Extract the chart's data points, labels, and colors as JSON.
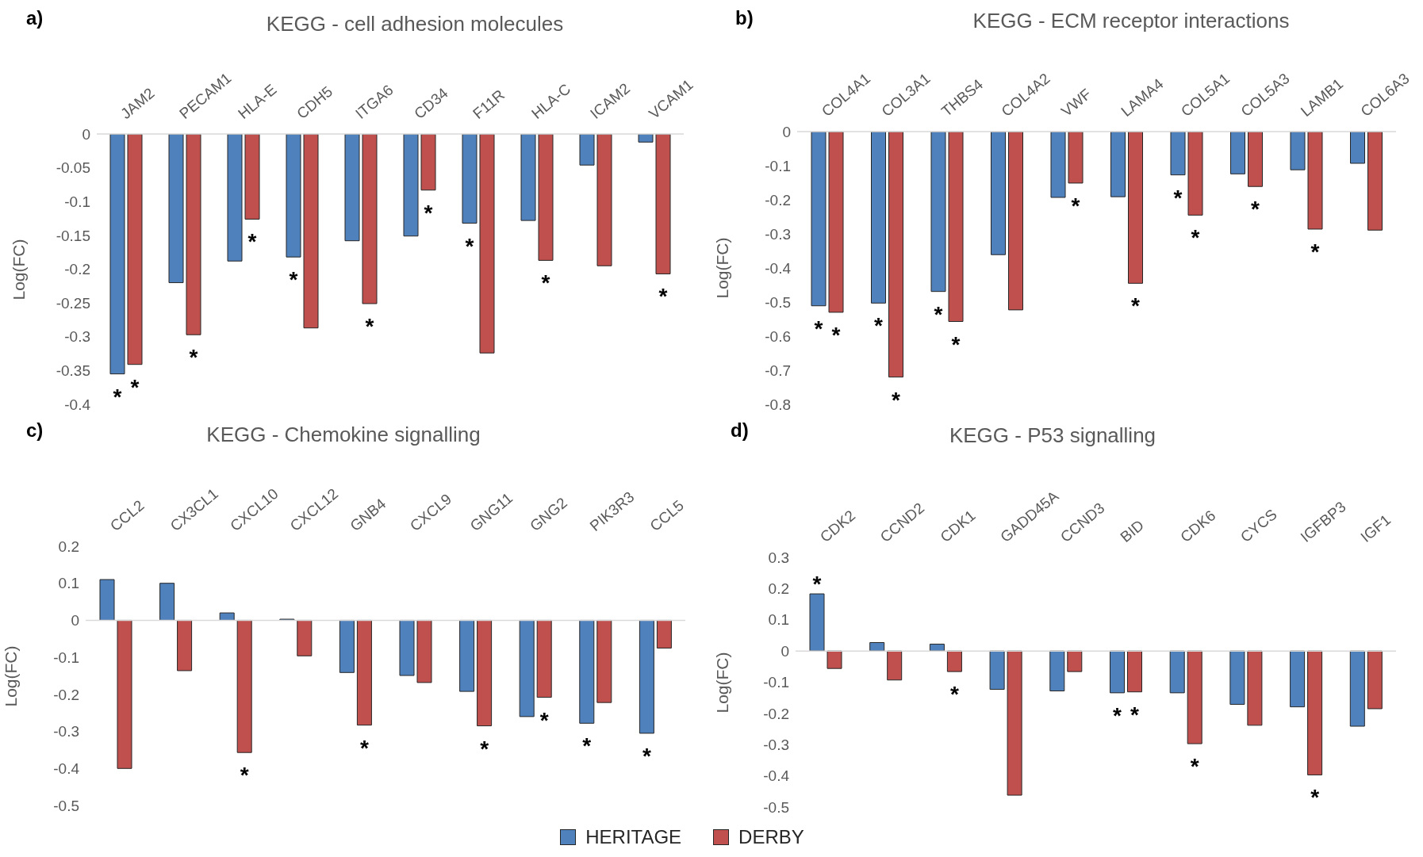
{
  "chart_data": [
    {
      "type": "bar",
      "title": "KEGG - cell adhesion molecules",
      "annotations": [
        "a)"
      ],
      "ylabel": "Log(FC)",
      "categories": [
        "JAM2",
        "PECAM1",
        "HLA-E",
        "CDH5",
        "ITGA6",
        "CD34",
        "F11R",
        "HLA-C",
        "ICAM2",
        "VCAM1"
      ],
      "ylim": [
        -0.4,
        0
      ],
      "yticks": [
        0,
        -0.05,
        -0.1,
        -0.15,
        -0.2,
        -0.25,
        -0.3,
        -0.35,
        -0.4
      ],
      "grid": false,
      "legend": false,
      "series": [
        {
          "color": "#4f81bd",
          "values": [
            -0.355,
            -0.22,
            -0.188,
            -0.182,
            -0.158,
            -0.151,
            -0.132,
            -0.128,
            -0.046,
            -0.012
          ],
          "value_labels": [
            "*",
            null,
            null,
            "*",
            null,
            null,
            "*",
            null,
            null,
            null
          ]
        },
        {
          "color": "#c0504d",
          "values": [
            -0.341,
            -0.297,
            -0.126,
            -0.287,
            -0.251,
            -0.083,
            -0.324,
            -0.187,
            -0.195,
            -0.207
          ],
          "value_labels": [
            "*",
            "*",
            "*",
            null,
            "*",
            "*",
            null,
            "*",
            null,
            "*"
          ]
        }
      ]
    },
    {
      "type": "bar",
      "title": "KEGG - ECM receptor interactions",
      "annotations": [
        "b)"
      ],
      "ylabel": "Log(FC)",
      "categories": [
        "COL4A1",
        "COL3A1",
        "THBS4",
        "COL4A2",
        "VWF",
        "LAMA4",
        "COL5A1",
        "COL5A3",
        "LAMB1",
        "COL6A3"
      ],
      "ylim": [
        -0.8,
        0
      ],
      "yticks": [
        0,
        -0.1,
        -0.2,
        -0.3,
        -0.4,
        -0.5,
        -0.6,
        -0.7,
        -0.8
      ],
      "grid": false,
      "legend": false,
      "series": [
        {
          "color": "#4f81bd",
          "values": [
            -0.511,
            -0.503,
            -0.469,
            -0.361,
            -0.193,
            -0.191,
            -0.127,
            -0.124,
            -0.112,
            -0.093
          ],
          "value_labels": [
            "*",
            "*",
            "*",
            null,
            null,
            null,
            "*",
            null,
            null,
            null
          ]
        },
        {
          "color": "#c0504d",
          "values": [
            -0.53,
            -0.72,
            -0.557,
            -0.523,
            -0.151,
            -0.445,
            -0.245,
            -0.161,
            -0.286,
            -0.289
          ],
          "value_labels": [
            "*",
            "*",
            "*",
            null,
            "*",
            "*",
            "*",
            "*",
            "*",
            null
          ]
        }
      ]
    },
    {
      "type": "bar",
      "title": "KEGG - Chemokine signalling",
      "annotations": [
        "c)"
      ],
      "ylabel": "Log(FC)",
      "categories": [
        "CCL2",
        "CX3CL1",
        "CXCL10",
        "CXCL12",
        "GNB4",
        "CXCL9",
        "GNG11",
        "GNG2",
        "PIK3R3",
        "CCL5"
      ],
      "ylim": [
        -0.5,
        0.2
      ],
      "yticks": [
        0.2,
        0.1,
        0,
        -0.1,
        -0.2,
        -0.3,
        -0.4,
        -0.5
      ],
      "grid": false,
      "ref_lines": [
        {
          "axis": "y",
          "value": 0,
          "color": "#d9d9d9"
        }
      ],
      "legend": "bottom",
      "series": [
        {
          "name": "HERITAGE",
          "color": "#4f81bd",
          "values": [
            0.11,
            0.1,
            0.02,
            0.003,
            -0.141,
            -0.149,
            -0.192,
            -0.26,
            -0.278,
            -0.305
          ],
          "value_labels": [
            null,
            null,
            null,
            null,
            null,
            null,
            null,
            null,
            "*",
            "*"
          ]
        },
        {
          "name": "DERBY",
          "color": "#c0504d",
          "values": [
            -0.4,
            -0.136,
            -0.357,
            -0.096,
            -0.283,
            -0.168,
            -0.285,
            -0.208,
            -0.222,
            -0.075
          ],
          "value_labels": [
            null,
            null,
            "*",
            null,
            "*",
            null,
            "*",
            "*",
            null,
            null
          ]
        }
      ]
    },
    {
      "type": "bar",
      "title": "KEGG - P53 signalling",
      "annotations": [
        "d)"
      ],
      "ylabel": "Log(FC)",
      "categories": [
        "CDK2",
        "CCND2",
        "CDK1",
        "GADD45A",
        "CCND3",
        "BID",
        "CDK6",
        "CYCS",
        "IGFBP3",
        "IGF1"
      ],
      "ylim": [
        -0.5,
        0.3
      ],
      "yticks": [
        0.3,
        0.2,
        0.1,
        0,
        -0.1,
        -0.2,
        -0.3,
        -0.4,
        -0.5
      ],
      "grid": false,
      "ref_lines": [
        {
          "axis": "y",
          "value": 0,
          "color": "#d9d9d9"
        }
      ],
      "legend": false,
      "series": [
        {
          "color": "#4f81bd",
          "values": [
            0.183,
            0.027,
            0.022,
            -0.123,
            -0.128,
            -0.134,
            -0.134,
            -0.171,
            -0.179,
            -0.241
          ],
          "value_labels": [
            "*",
            null,
            null,
            null,
            null,
            "*",
            null,
            null,
            null,
            null
          ]
        },
        {
          "color": "#c0504d",
          "values": [
            -0.056,
            -0.093,
            -0.066,
            -0.462,
            -0.066,
            -0.131,
            -0.297,
            -0.238,
            -0.397,
            -0.185
          ],
          "value_labels": [
            null,
            null,
            "*",
            null,
            null,
            "*",
            "*",
            null,
            "*",
            null
          ]
        }
      ]
    }
  ]
}
